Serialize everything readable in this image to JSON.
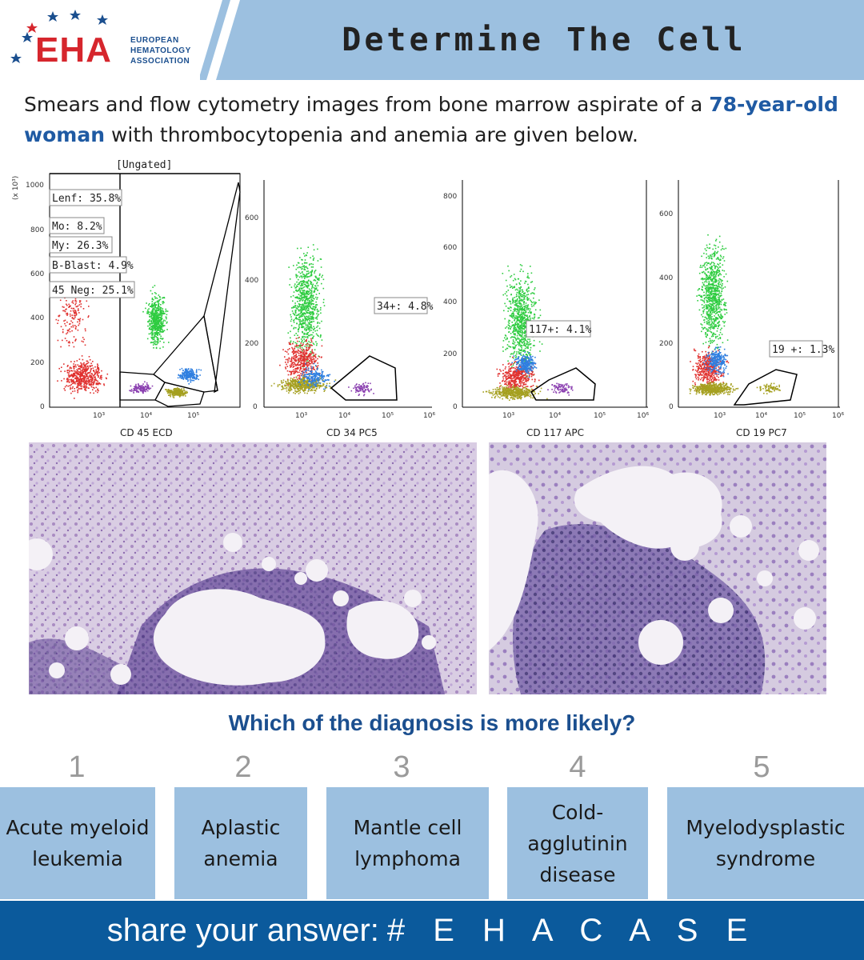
{
  "header": {
    "logo_text": "EHA",
    "logo_subtitle": [
      "EUROPEAN",
      "HEMATOLOGY",
      "ASSOCIATION"
    ],
    "title": "Determine The Cell"
  },
  "intro": {
    "text_before": "Smears and flow cytometry images from bone marrow aspirate of a ",
    "highlight": "78-year-old woman",
    "text_after": " with thrombocytopenia and anemia are given below."
  },
  "plots": [
    {
      "xlabel": "CD 45 ECD",
      "title": "[Ungated]",
      "yunit": "(x 10³)",
      "yticks": [
        "1000",
        "800",
        "600",
        "400",
        "200",
        "0"
      ],
      "xticks": [
        "10³",
        "10⁴",
        "10⁵"
      ],
      "gates": [
        "Lenf: 35.8%",
        "Mo: 8.2%",
        "My: 26.3%",
        "B-Blast: 4.9%",
        "45 Neg: 25.1%"
      ]
    },
    {
      "xlabel": "CD 34 PC5",
      "yticks": [
        "600",
        "400",
        "200",
        "0"
      ],
      "xticks": [
        "10³",
        "10⁴",
        "10⁵",
        "10⁶"
      ],
      "gates": [
        "34+: 4.8%"
      ]
    },
    {
      "xlabel": "CD 117 APC",
      "yticks": [
        "800",
        "600",
        "400",
        "200",
        "0"
      ],
      "xticks": [
        "10³",
        "10⁴",
        "10⁵",
        "10⁶"
      ],
      "gates": [
        "117+: 4.1%"
      ]
    },
    {
      "xlabel": "CD 19 PC7",
      "yticks": [
        "600",
        "400",
        "200",
        "0"
      ],
      "xticks": [
        "10³",
        "10⁴",
        "10⁵",
        "10⁶"
      ],
      "gates": [
        "19 +: 1.3%"
      ]
    }
  ],
  "question": "Which of the diagnosis is more likely?",
  "options": [
    {
      "number": "1",
      "label": "Acute myeloid leukemia"
    },
    {
      "number": "2",
      "label": "Aplastic anemia"
    },
    {
      "number": "3",
      "label": "Mantle cell lymphoma"
    },
    {
      "number": "4",
      "label": "Cold-agglutinin disease"
    },
    {
      "number": "5",
      "label": "Myelodysplastic syndrome"
    }
  ],
  "footer": {
    "prefix": "share your answer:",
    "hashtag": "# E H A C A S E"
  },
  "colors": {
    "band": "#9cc0e0",
    "footer": "#0b5a9c",
    "highlight": "#1f5aa3",
    "logo_red": "#d6262d",
    "logo_blue": "#1b4f8f"
  }
}
